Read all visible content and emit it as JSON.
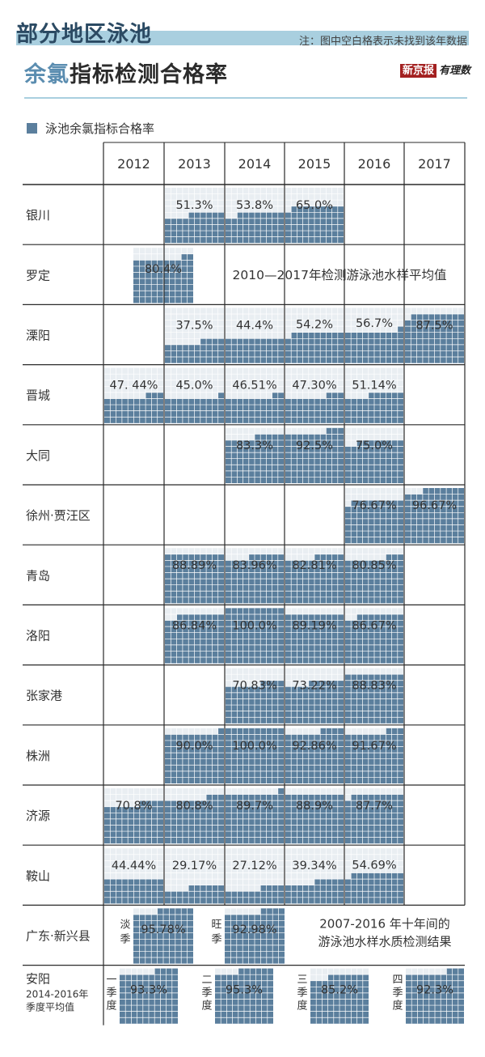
{
  "title": {
    "line1": "部分地区泳池",
    "line2_accent": "余氯",
    "line2_rest": "指标检测合格率",
    "note": "注：图中空白格表示未找到该年数据",
    "brand_left": "新京报",
    "brand_right": "有理数"
  },
  "colors": {
    "title_band": "#a9cfdf",
    "block_fill": "#5b7f9d",
    "block_light": "#e9eef2",
    "grid_line": "#2a2a2a"
  },
  "chart_data": {
    "type": "table",
    "title": "部分地区泳池余氯指标检测合格率",
    "legend": "泳池余氯指标合格率",
    "note": "注：图中空白格表示未找到该年数据",
    "years": [
      "2012",
      "2013",
      "2014",
      "2015",
      "2016",
      "2017"
    ],
    "rows": [
      {
        "region": "银川",
        "values": [
          null,
          51.3,
          53.8,
          65.0,
          null,
          null
        ],
        "labels": [
          null,
          "51.3%",
          "53.8%",
          "65.0%",
          null,
          null
        ]
      },
      {
        "region": "罗定",
        "special": "average",
        "value": 80.4,
        "label": "80.4%",
        "caption": "2010—2017年检测游泳池水样平均值"
      },
      {
        "region": "溧阳",
        "values": [
          null,
          37.5,
          44.4,
          54.2,
          56.7,
          87.5
        ],
        "labels": [
          null,
          "37.5%",
          "44.4%",
          "54.2%",
          "56.7%",
          "87.5%"
        ]
      },
      {
        "region": "晋城",
        "values": [
          47.44,
          45.0,
          46.51,
          47.3,
          51.14,
          null
        ],
        "labels": [
          "47. 44%",
          "45.0%",
          "46.51%",
          "47.30%",
          "51.14%",
          null
        ]
      },
      {
        "region": "大同",
        "values": [
          null,
          null,
          83.3,
          92.5,
          75.0,
          null
        ],
        "labels": [
          null,
          null,
          "83.3%",
          "92.5%",
          "75.0%",
          null
        ]
      },
      {
        "region": "徐州·贾汪区",
        "values": [
          null,
          null,
          null,
          null,
          76.67,
          96.67
        ],
        "labels": [
          null,
          null,
          null,
          null,
          "76.67%",
          "96.67%"
        ]
      },
      {
        "region": "青岛",
        "values": [
          null,
          88.89,
          83.96,
          82.81,
          80.85,
          null
        ],
        "labels": [
          null,
          "88.89%",
          "83.96%",
          "82.81%",
          "80.85%",
          null
        ]
      },
      {
        "region": "洛阳",
        "values": [
          null,
          86.84,
          100.0,
          89.19,
          86.67,
          null
        ],
        "labels": [
          null,
          "86.84%",
          "100.0%",
          "89.19%",
          "86.67%",
          null
        ]
      },
      {
        "region": "张家港",
        "values": [
          null,
          null,
          70.83,
          73.22,
          88.83,
          null
        ],
        "labels": [
          null,
          null,
          "70.83%",
          "73.22%",
          "88.83%",
          null
        ]
      },
      {
        "region": "株洲",
        "values": [
          null,
          90.0,
          100.0,
          92.86,
          91.67,
          null
        ],
        "labels": [
          null,
          "90.0%",
          "100.0%",
          "92.86%",
          "91.67%",
          null
        ]
      },
      {
        "region": "济源",
        "values": [
          70.8,
          80.8,
          89.7,
          88.9,
          87.7,
          null
        ],
        "labels": [
          "70.8%",
          "80.8%",
          "89.7%",
          "88.9%",
          "87.7%",
          null
        ]
      },
      {
        "region": "鞍山",
        "values": [
          44.44,
          29.17,
          27.12,
          39.34,
          54.69,
          null
        ],
        "labels": [
          "44.44%",
          "29.17%",
          "27.12%",
          "39.34%",
          "54.69%",
          null
        ]
      },
      {
        "region": "广东·新兴县",
        "special": "season2",
        "items": [
          {
            "season": "淡季",
            "value": 95.78,
            "label": "95.78%"
          },
          {
            "season": "旺季",
            "value": 92.98,
            "label": "92.98%"
          }
        ],
        "caption": [
          "2007-2016 年十年间的",
          "游泳池水样水质检测结果"
        ]
      },
      {
        "region": "安阳",
        "region_sub": [
          "2014-2016年",
          "季度平均值"
        ],
        "special": "quarter",
        "items": [
          {
            "season": "一季度",
            "value": 93.3,
            "label": "93.3%"
          },
          {
            "season": "二季度",
            "value": 95.3,
            "label": "95.3%"
          },
          {
            "season": "三季度",
            "value": 85.2,
            "label": "85.2%"
          },
          {
            "season": "四季度",
            "value": 92.3,
            "label": "92.3%"
          }
        ]
      }
    ]
  }
}
